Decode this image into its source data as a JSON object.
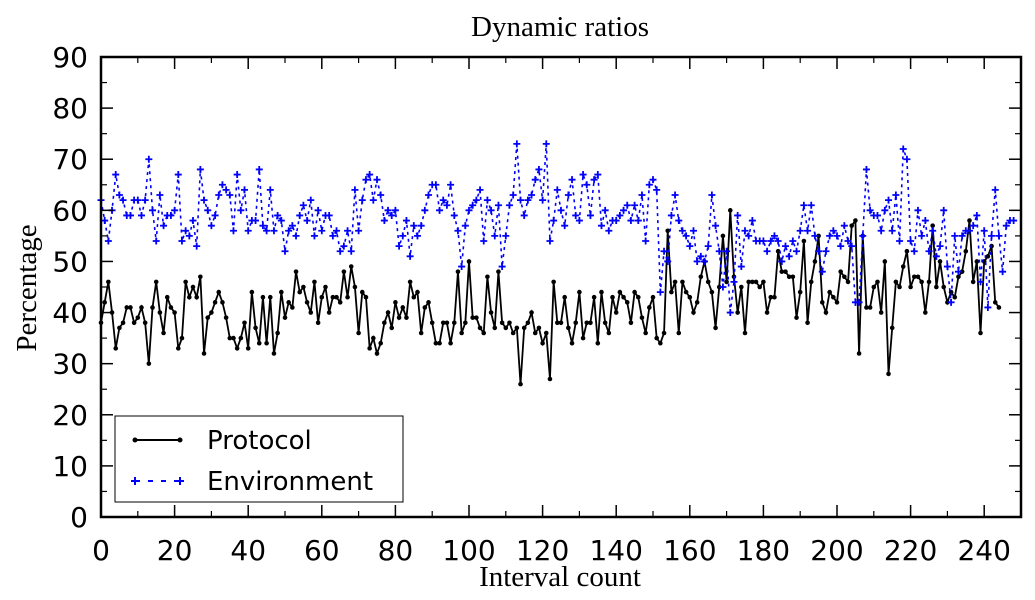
{
  "chart_data": {
    "type": "line",
    "title": "Dynamic ratios",
    "xlabel": "Interval count",
    "ylabel": "Percentage",
    "xlim": [
      0,
      250
    ],
    "ylim": [
      0,
      90
    ],
    "xticks": [
      0,
      20,
      40,
      60,
      80,
      100,
      120,
      140,
      160,
      180,
      200,
      220,
      240
    ],
    "yticks": [
      0,
      10,
      20,
      30,
      40,
      50,
      60,
      70,
      80,
      90
    ],
    "grid": false,
    "legend_position": "bottom-left",
    "series": [
      {
        "name": "Protocol",
        "color": "#000000",
        "line_style": "solid",
        "marker": "dot",
        "values": [
          38,
          42,
          46,
          40,
          33,
          37,
          38,
          41,
          41,
          38,
          39,
          41,
          38,
          30,
          41,
          46,
          40,
          36,
          43,
          41,
          40,
          33,
          35,
          46,
          43,
          45,
          43,
          47,
          32,
          39,
          40,
          42,
          44,
          42,
          39,
          35,
          35,
          33,
          35,
          38,
          33,
          44,
          37,
          34,
          43,
          34,
          43,
          32,
          36,
          44,
          39,
          42,
          41,
          48,
          44,
          45,
          42,
          40,
          46,
          38,
          43,
          45,
          40,
          43,
          43,
          42,
          48,
          43,
          49,
          45,
          36,
          44,
          43,
          33,
          35,
          32,
          34,
          38,
          40,
          37,
          42,
          39,
          41,
          39,
          46,
          43,
          44,
          36,
          41,
          42,
          38,
          34,
          34,
          38,
          38,
          34,
          38,
          48,
          36,
          38,
          50,
          39,
          39,
          37,
          36,
          47,
          40,
          37,
          48,
          38,
          37,
          38,
          36,
          37,
          26,
          37,
          38,
          40,
          36,
          37,
          34,
          36,
          27,
          46,
          38,
          38,
          43,
          37,
          34,
          38,
          44,
          35,
          38,
          38,
          43,
          34,
          44,
          38,
          36,
          43,
          40,
          44,
          43,
          42,
          38,
          44,
          43,
          39,
          36,
          41,
          43,
          35,
          34,
          36,
          56,
          44,
          46,
          36,
          46,
          44,
          43,
          40,
          42,
          47,
          50,
          46,
          44,
          37,
          45,
          55,
          46,
          60,
          47,
          40,
          45,
          36,
          46,
          46,
          46,
          45,
          46,
          40,
          43,
          43,
          52,
          48,
          48,
          47,
          47,
          39,
          44,
          54,
          38,
          46,
          50,
          55,
          42,
          40,
          44,
          43,
          42,
          48,
          47,
          46,
          57,
          58,
          32,
          55,
          41,
          41,
          45,
          46,
          40,
          50,
          28,
          37,
          46,
          45,
          49,
          52,
          45,
          47,
          47,
          46,
          40,
          46,
          57,
          45,
          50,
          45,
          42,
          44,
          43,
          47,
          48,
          52,
          58,
          46,
          50,
          36,
          50,
          51,
          53,
          42,
          41
        ]
      },
      {
        "name": "Environment",
        "color": "#0000ff",
        "line_style": "dashed",
        "marker": "plus",
        "values": [
          62,
          58,
          54,
          60,
          67,
          63,
          62,
          59,
          59,
          62,
          62,
          59,
          62,
          70,
          60,
          54,
          63,
          57,
          59,
          59,
          60,
          67,
          54,
          56,
          55,
          58,
          53,
          68,
          62,
          60,
          57,
          59,
          63,
          65,
          64,
          63,
          56,
          67,
          60,
          64,
          56,
          58,
          58,
          68,
          57,
          56,
          64,
          56,
          59,
          58,
          52,
          56,
          57,
          55,
          59,
          61,
          58,
          62,
          55,
          60,
          56,
          59,
          59,
          55,
          56,
          52,
          53,
          56,
          52,
          64,
          56,
          62,
          66,
          67,
          62,
          66,
          63,
          58,
          60,
          59,
          60,
          53,
          55,
          58,
          51,
          57,
          55,
          57,
          60,
          63,
          65,
          65,
          60,
          62,
          61,
          65,
          59,
          56,
          49,
          57,
          60,
          61,
          62,
          64,
          54,
          62,
          60,
          55,
          61,
          49,
          55,
          61,
          63,
          73,
          62,
          59,
          62,
          63,
          66,
          68,
          62,
          73,
          54,
          58,
          64,
          60,
          57,
          63,
          66,
          59,
          58,
          67,
          65,
          59,
          66,
          67,
          57,
          60,
          56,
          58,
          58,
          59,
          60,
          61,
          58,
          61,
          58,
          63,
          54,
          65,
          66,
          64,
          44,
          52,
          50,
          59,
          63,
          58,
          56,
          55,
          53,
          56,
          50,
          51,
          50,
          53,
          63,
          57,
          52,
          45,
          52,
          40,
          46,
          59,
          49,
          56,
          55,
          58,
          54,
          54,
          54,
          52,
          54,
          55,
          54,
          50,
          53,
          51,
          54,
          52,
          56,
          61,
          56,
          61,
          55,
          52,
          48,
          52,
          55,
          56,
          55,
          53,
          57,
          54,
          53,
          42,
          42,
          55,
          68,
          60,
          59,
          59,
          56,
          60,
          62,
          56,
          63,
          54,
          72,
          70,
          54,
          52,
          60,
          55,
          58,
          52,
          56,
          51,
          53,
          60,
          49,
          42,
          55,
          48,
          55,
          56,
          56,
          57,
          59,
          46,
          56,
          41,
          55,
          64,
          55,
          48,
          57,
          58,
          58
        ]
      }
    ]
  }
}
